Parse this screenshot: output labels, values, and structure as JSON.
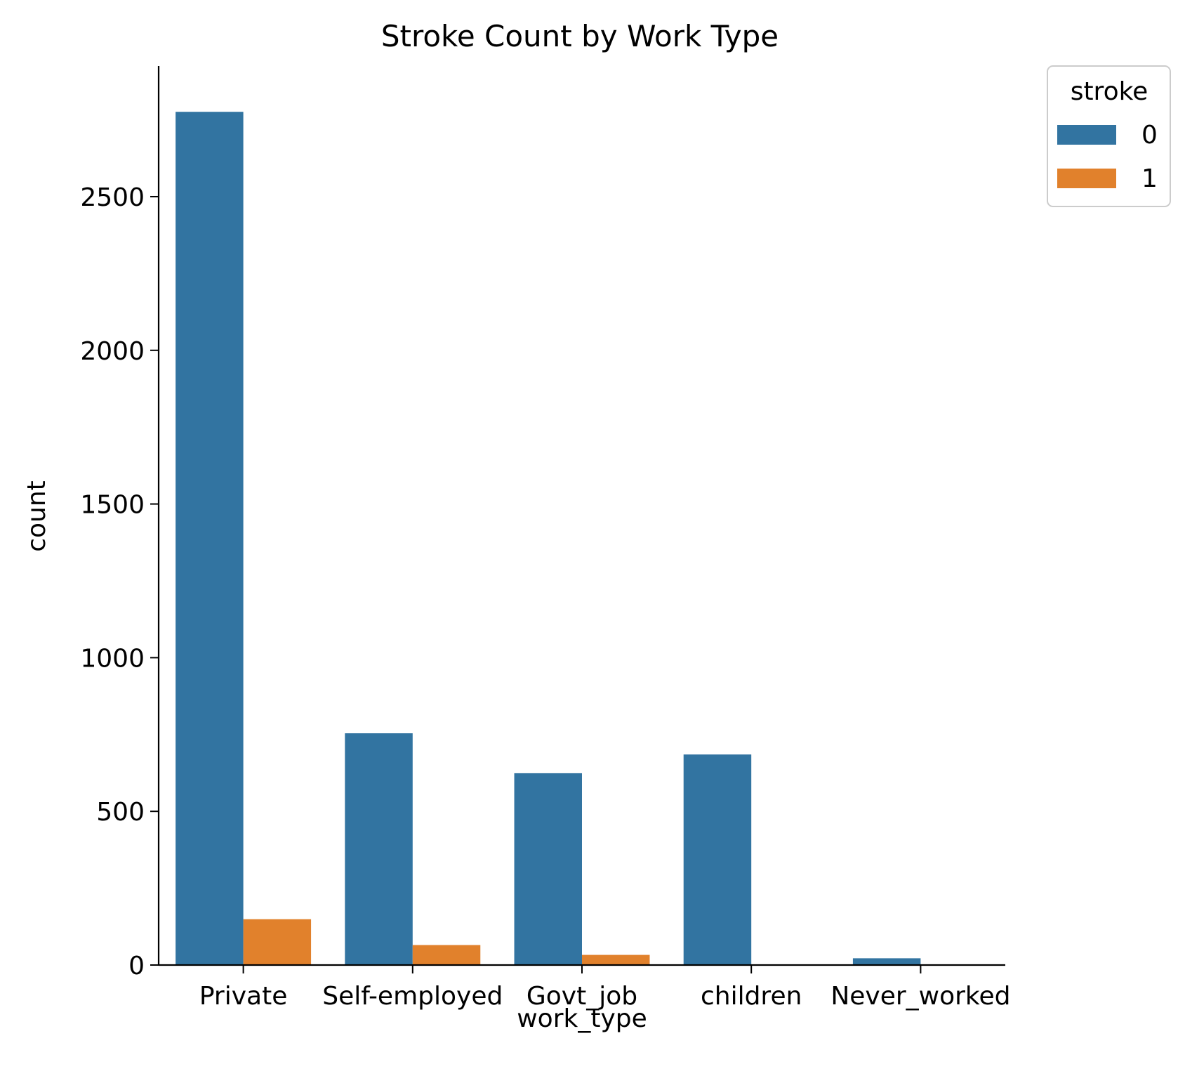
{
  "chart_data": {
    "type": "bar",
    "title": "Stroke Count by Work Type",
    "xlabel": "work_type",
    "ylabel": "count",
    "categories": [
      "Private",
      "Self-employed",
      "Govt_job",
      "children",
      "Never_worked"
    ],
    "series": [
      {
        "name": "0",
        "values": [
          2776,
          754,
          624,
          685,
          22
        ],
        "color": "#3274a1"
      },
      {
        "name": "1",
        "values": [
          149,
          65,
          33,
          2,
          0
        ],
        "color": "#e1812c"
      }
    ],
    "ylim": [
      0,
      2925
    ],
    "yticks": [
      0,
      500,
      1000,
      1500,
      2000,
      2500
    ],
    "grid": false,
    "legend": {
      "title": "stroke",
      "placement": "outside-top-right"
    }
  }
}
